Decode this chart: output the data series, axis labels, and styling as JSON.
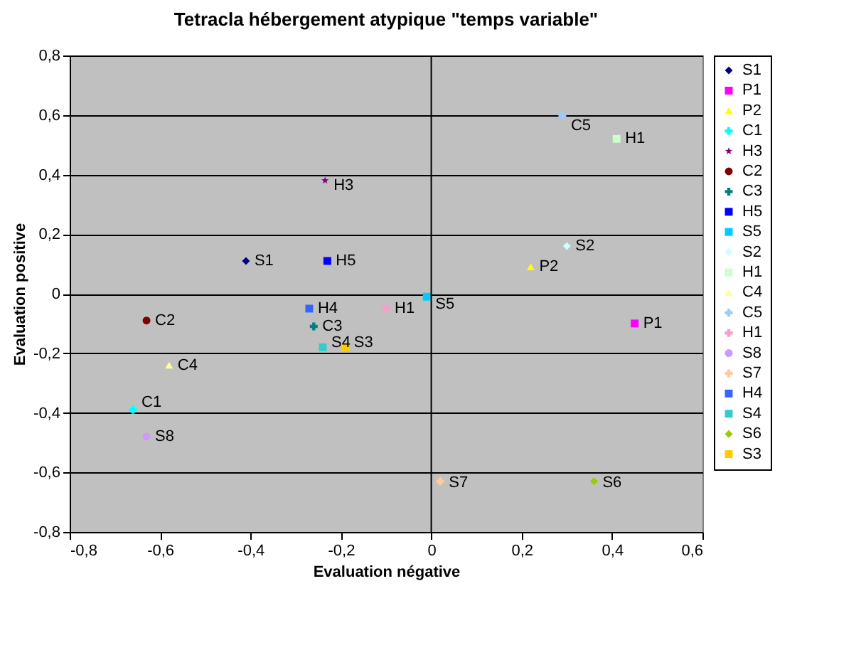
{
  "chart_data": {
    "type": "scatter",
    "title": "Tetracla hébergement atypique \"temps variable\"",
    "xlabel": "Evaluation négative",
    "ylabel": "Evaluation positive",
    "xlim": [
      -0.8,
      0.6
    ],
    "ylim": [
      -0.8,
      0.8
    ],
    "xticks": [
      {
        "value": -0.8,
        "label": "-0,8"
      },
      {
        "value": -0.6,
        "label": "-0,6"
      },
      {
        "value": -0.4,
        "label": "-0,4"
      },
      {
        "value": -0.2,
        "label": "-0,2"
      },
      0,
      {
        "value": 0.2,
        "label": "0,2"
      },
      {
        "value": 0.4,
        "label": "0,4"
      },
      {
        "value": 0.6,
        "label": "0,6"
      }
    ],
    "yticks": [
      {
        "value": -0.8,
        "label": "-0,8"
      },
      {
        "value": -0.6,
        "label": "-0,6"
      },
      {
        "value": -0.4,
        "label": "-0,4"
      },
      {
        "value": -0.2,
        "label": "-0,2"
      },
      0,
      {
        "value": 0.2,
        "label": "0,2"
      },
      {
        "value": 0.4,
        "label": "0,4"
      },
      {
        "value": 0.6,
        "label": "0,6"
      },
      {
        "value": 0.8,
        "label": "0,8"
      }
    ],
    "grid": "y",
    "legend": "right",
    "ref_lines": [
      {
        "axis": "x",
        "value": 0
      }
    ],
    "series": [
      {
        "name": "S1",
        "color": "#000080",
        "marker": "diamond",
        "x": [
          -0.41
        ],
        "values": [
          0.11
        ]
      },
      {
        "name": "P1",
        "color": "#ff00ff",
        "marker": "square",
        "x": [
          0.45
        ],
        "values": [
          -0.1
        ]
      },
      {
        "name": "P2",
        "color": "#ffff00",
        "marker": "triangle",
        "x": [
          0.22
        ],
        "values": [
          0.09
        ]
      },
      {
        "name": "C1",
        "color": "#00ffff",
        "marker": "cross",
        "x": [
          -0.66
        ],
        "values": [
          -0.39
        ]
      },
      {
        "name": "H3",
        "color": "#800080",
        "marker": "star",
        "x": [
          -0.235
        ],
        "values": [
          0.38
        ]
      },
      {
        "name": "C2",
        "color": "#800000",
        "marker": "circle",
        "x": [
          -0.63
        ],
        "values": [
          -0.09
        ]
      },
      {
        "name": "C3",
        "color": "#008080",
        "marker": "cross",
        "x": [
          -0.26
        ],
        "values": [
          -0.11
        ]
      },
      {
        "name": "H5",
        "color": "#0000ff",
        "marker": "square",
        "x": [
          -0.23
        ],
        "values": [
          0.11
        ]
      },
      {
        "name": "S5",
        "color": "#00ccff",
        "marker": "square",
        "x": [
          -0.01
        ],
        "values": [
          -0.01
        ]
      },
      {
        "name": "S2",
        "color": "#ccffff",
        "marker": "diamond",
        "x": [
          0.3
        ],
        "values": [
          0.16
        ]
      },
      {
        "name": "H1",
        "color": "#ccffcc",
        "marker": "square",
        "x": [
          0.41
        ],
        "values": [
          0.52
        ]
      },
      {
        "name": "C4",
        "color": "#ffff99",
        "marker": "triangle",
        "x": [
          -0.58
        ],
        "values": [
          -0.24
        ]
      },
      {
        "name": "C5",
        "color": "#99ccff",
        "marker": "cross",
        "x": [
          0.29
        ],
        "values": [
          0.6
        ]
      },
      {
        "name": "H1",
        "color": "#ff99cc",
        "marker": "cross",
        "x": [
          -0.1
        ],
        "values": [
          -0.05
        ]
      },
      {
        "name": "S8",
        "color": "#cc99ff",
        "marker": "circle",
        "x": [
          -0.63
        ],
        "values": [
          -0.48
        ]
      },
      {
        "name": "S7",
        "color": "#ffcc99",
        "marker": "cross",
        "x": [
          0.02
        ],
        "values": [
          -0.63
        ]
      },
      {
        "name": "H4",
        "color": "#3366ff",
        "marker": "square",
        "x": [
          -0.27
        ],
        "values": [
          -0.05
        ]
      },
      {
        "name": "S4",
        "color": "#33cccc",
        "marker": "square",
        "x": [
          -0.24
        ],
        "values": [
          -0.18
        ]
      },
      {
        "name": "S6",
        "color": "#99cc00",
        "marker": "diamond",
        "x": [
          0.36
        ],
        "values": [
          -0.63
        ]
      },
      {
        "name": "S3",
        "color": "#ffcc00",
        "marker": "square",
        "x": [
          -0.19
        ],
        "values": [
          -0.18
        ]
      }
    ]
  }
}
